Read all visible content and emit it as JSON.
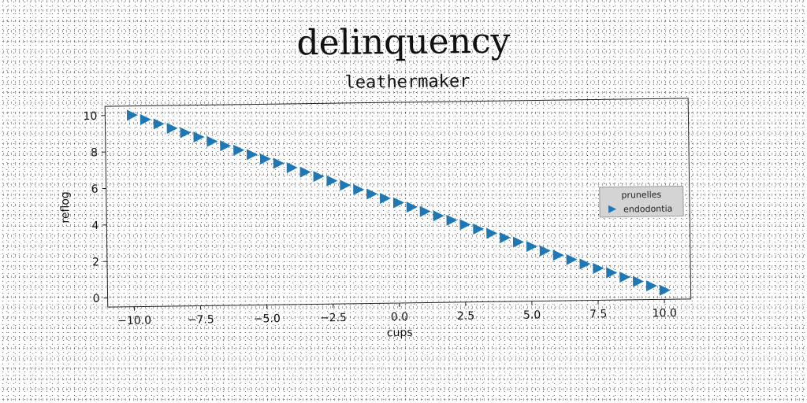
{
  "title": "delinquency",
  "chart_data": {
    "type": "scatter",
    "title": "leathermaker",
    "xlabel": "cups",
    "ylabel": "reflog",
    "xlim": [
      -11,
      11
    ],
    "ylim": [
      -0.5,
      10.5
    ],
    "xticks": [
      -10.0,
      -7.5,
      -5.0,
      -2.5,
      0.0,
      2.5,
      5.0,
      7.5,
      10.0
    ],
    "xtick_labels": [
      "−10.0",
      "−7.5",
      "−5.0",
      "−2.5",
      "0.0",
      "2.5",
      "5.0",
      "7.5",
      "10.0"
    ],
    "yticks": [
      0,
      2,
      4,
      6,
      8,
      10
    ],
    "ytick_labels": [
      "0",
      "2",
      "4",
      "6",
      "8",
      "10"
    ],
    "grid": false,
    "legend": {
      "title": "prunelles",
      "placement": "center-right",
      "entries": [
        "endodontia"
      ]
    },
    "series": [
      {
        "name": "endodontia",
        "marker": "triangle-right",
        "color": "#1f77b4",
        "x": [
          -10.0,
          -9.5,
          -9.0,
          -8.5,
          -8.0,
          -7.5,
          -7.0,
          -6.5,
          -6.0,
          -5.5,
          -5.0,
          -4.5,
          -4.0,
          -3.5,
          -3.0,
          -2.5,
          -2.0,
          -1.5,
          -1.0,
          -0.5,
          0.0,
          0.5,
          1.0,
          1.5,
          2.0,
          2.5,
          3.0,
          3.5,
          4.0,
          4.5,
          5.0,
          5.5,
          6.0,
          6.5,
          7.0,
          7.5,
          8.0,
          8.5,
          9.0,
          9.5,
          10.0
        ],
        "y": [
          10.0,
          9.75,
          9.5,
          9.25,
          9.0,
          8.75,
          8.5,
          8.25,
          8.0,
          7.75,
          7.5,
          7.25,
          7.0,
          6.75,
          6.5,
          6.25,
          6.0,
          5.75,
          5.5,
          5.25,
          5.0,
          4.75,
          4.5,
          4.25,
          4.0,
          3.75,
          3.5,
          3.25,
          3.0,
          2.75,
          2.5,
          2.25,
          2.0,
          1.75,
          1.5,
          1.25,
          1.0,
          0.75,
          0.5,
          0.25,
          0.0
        ]
      }
    ]
  }
}
